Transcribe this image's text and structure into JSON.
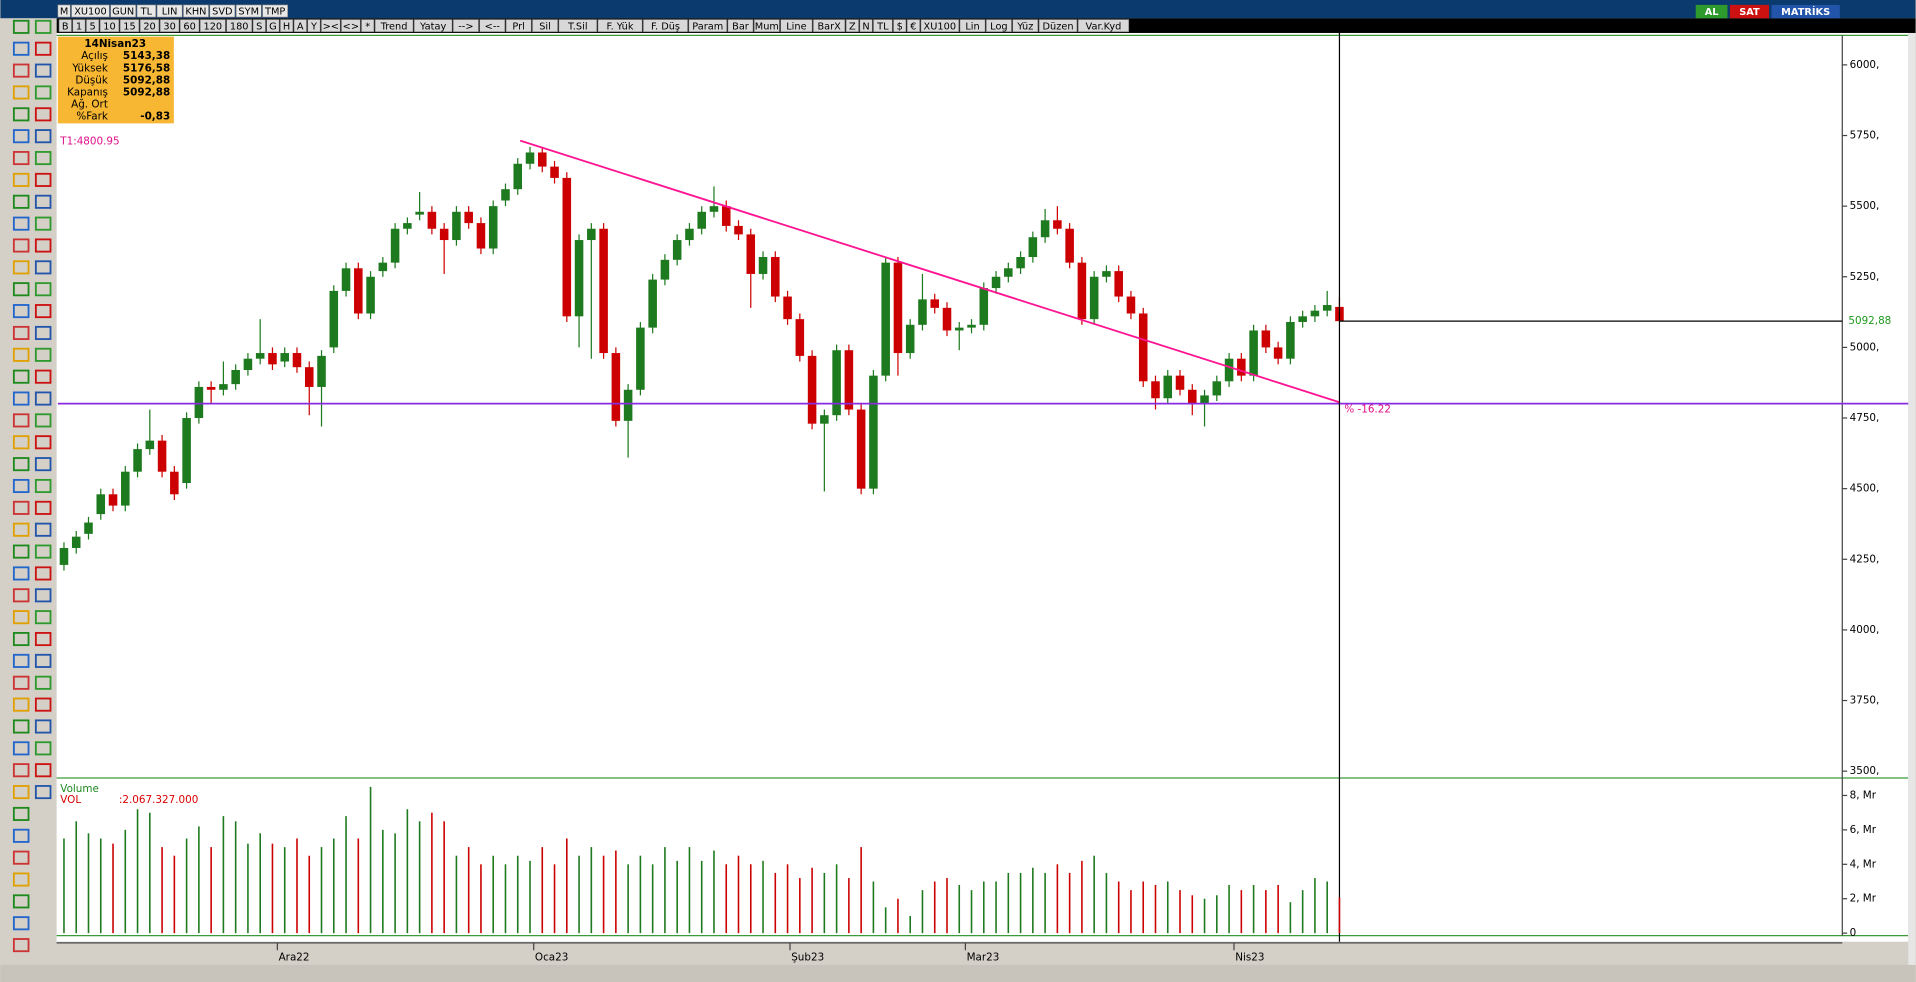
{
  "toolbar": {
    "row1": [
      "M",
      "XU100",
      "GUN",
      "TL",
      "LIN",
      "KHN",
      "SVD",
      "SYM",
      "TMP"
    ],
    "row2": [
      "B",
      "1",
      "5",
      "10",
      "15",
      "20",
      "30",
      "60",
      "120",
      "180",
      "S",
      "G",
      "H",
      "A",
      "Y",
      "><",
      "<>",
      "*",
      "Trend",
      "Yatay",
      "-->",
      "<--",
      "Prl",
      "Sil",
      "T.Sil",
      "F. Yük",
      "F. Düş",
      "Param",
      "Bar",
      "Mum",
      "Line",
      "BarX",
      "Z",
      "N",
      "TL",
      "$",
      "€",
      "XU100",
      "Lin",
      "Log",
      "Yüz",
      "Düzen",
      "Var.Kyd"
    ],
    "right": [
      "AL",
      "SAT",
      "MATRİKS"
    ]
  },
  "info_panel": {
    "title": "14Nisan23",
    "rows": [
      {
        "label": "Açılış",
        "value": "5143,38"
      },
      {
        "label": "Yüksek",
        "value": "5176,58"
      },
      {
        "label": "Düşük",
        "value": "5092,88"
      },
      {
        "label": "Kapanış",
        "value": "5092,88"
      },
      {
        "label": "Ağ. Ort"
      },
      {
        "label": "%Fark",
        "value": "-0,83"
      }
    ]
  },
  "chart_data": [
    {
      "type": "candlestick",
      "up_color": "#1e7a1e",
      "down_color": "#cc0000",
      "xlim": [
        -0.5,
        145
      ],
      "ylim": [
        3480,
        6100
      ],
      "xticks": [
        {
          "value": 17.4,
          "label": "Ara22"
        },
        {
          "value": 38.3,
          "label": "Oca23"
        },
        {
          "value": 59.2,
          "label": "Şub23"
        },
        {
          "value": 73.5,
          "label": "Mar23"
        },
        {
          "value": 95.4,
          "label": "Nis23"
        }
      ],
      "yticks": [
        {
          "value": 6000,
          "label": "6000,"
        },
        {
          "value": 5750,
          "label": "5750,"
        },
        {
          "value": 5500,
          "label": "5500,"
        },
        {
          "value": 5250,
          "label": "5250,"
        },
        {
          "value": 5000,
          "label": "5000,"
        },
        {
          "value": 4750,
          "label": "4750,"
        },
        {
          "value": 4500,
          "label": "4500,"
        },
        {
          "value": 4250,
          "label": "4250,"
        },
        {
          "value": 4000,
          "label": "4000,"
        },
        {
          "value": 3750,
          "label": "3750,"
        },
        {
          "value": 3500,
          "label": "3500,"
        }
      ],
      "open": [
        4230,
        4290,
        4340,
        4410,
        4480,
        4440,
        4560,
        4640,
        4670,
        4560,
        4520,
        4750,
        4860,
        4850,
        4870,
        4920,
        4960,
        4980,
        4950,
        4980,
        4930,
        4860,
        5000,
        5200,
        5280,
        5120,
        5270,
        5300,
        5420,
        5470,
        5480,
        5420,
        5380,
        5480,
        5440,
        5350,
        5520,
        5560,
        5650,
        5690,
        5640,
        5600,
        5110,
        5380,
        5420,
        4980,
        4740,
        4850,
        5070,
        5240,
        5310,
        5380,
        5420,
        5480,
        5500,
        5430,
        5400,
        5260,
        5320,
        5180,
        5100,
        4970,
        4730,
        4760,
        4990,
        4780,
        4500,
        4900,
        5300,
        4980,
        5080,
        5170,
        5140,
        5060,
        5070,
        5080,
        5210,
        5250,
        5280,
        5320,
        5390,
        5450,
        5420,
        5300,
        5100,
        5250,
        5270,
        5180,
        5120,
        4880,
        4820,
        4900,
        4850,
        4800,
        4830,
        4880,
        4960,
        4900,
        5060,
        5000,
        4960,
        5090,
        5110,
        5130,
        5143.38
      ],
      "high": [
        4310,
        4350,
        4400,
        4500,
        4500,
        4580,
        4660,
        4780,
        4690,
        4580,
        4770,
        4880,
        4880,
        4950,
        4940,
        4980,
        5100,
        5000,
        5000,
        5000,
        4950,
        4990,
        5220,
        5300,
        5300,
        5270,
        5320,
        5440,
        5460,
        5550,
        5500,
        5440,
        5500,
        5500,
        5460,
        5520,
        5580,
        5670,
        5710,
        5710,
        5660,
        5620,
        5400,
        5440,
        5440,
        5000,
        4870,
        5090,
        5260,
        5330,
        5400,
        5440,
        5500,
        5570,
        5520,
        5450,
        5420,
        5340,
        5340,
        5200,
        5120,
        4990,
        4780,
        5010,
        5010,
        4800,
        4920,
        5320,
        5320,
        5100,
        5260,
        5190,
        5160,
        5090,
        5100,
        5230,
        5270,
        5300,
        5340,
        5410,
        5490,
        5500,
        5440,
        5320,
        5270,
        5290,
        5290,
        5200,
        5140,
        4900,
        4920,
        4920,
        4870,
        4850,
        4900,
        4980,
        4980,
        5080,
        5080,
        5020,
        5110,
        5130,
        5150,
        5200,
        5176.58
      ],
      "low": [
        4210,
        4270,
        4320,
        4390,
        4420,
        4420,
        4540,
        4620,
        4540,
        4460,
        4500,
        4730,
        4800,
        4830,
        4850,
        4900,
        4940,
        4920,
        4930,
        4910,
        4760,
        4720,
        4980,
        5180,
        5100,
        5100,
        5250,
        5280,
        5400,
        5450,
        5400,
        5260,
        5360,
        5420,
        5330,
        5330,
        5500,
        5540,
        5630,
        5620,
        5580,
        5090,
        5000,
        4960,
        4960,
        4720,
        4610,
        4830,
        5050,
        5220,
        5290,
        5360,
        5400,
        5460,
        5410,
        5380,
        5140,
        5240,
        5160,
        5080,
        4950,
        4710,
        4490,
        4740,
        4760,
        4480,
        4480,
        4880,
        4900,
        4960,
        5060,
        5120,
        5040,
        4990,
        5050,
        5060,
        5190,
        5230,
        5260,
        5300,
        5370,
        5400,
        5280,
        5080,
        5080,
        5230,
        5160,
        5100,
        4860,
        4780,
        4800,
        4830,
        4760,
        4720,
        4810,
        4860,
        4880,
        4880,
        4980,
        4940,
        4940,
        5070,
        5090,
        5110,
        5092.88
      ],
      "close": [
        4290,
        4330,
        4380,
        4480,
        4440,
        4560,
        4640,
        4670,
        4560,
        4480,
        4750,
        4860,
        4850,
        4870,
        4920,
        4960,
        4980,
        4940,
        4980,
        4930,
        4860,
        4970,
        5200,
        5280,
        5120,
        5250,
        5300,
        5420,
        5440,
        5480,
        5420,
        5380,
        5480,
        5440,
        5350,
        5500,
        5560,
        5650,
        5690,
        5640,
        5600,
        5110,
        5380,
        5420,
        4980,
        4740,
        4850,
        5070,
        5240,
        5310,
        5380,
        5420,
        5480,
        5500,
        5430,
        5400,
        5260,
        5320,
        5180,
        5100,
        4970,
        4730,
        4760,
        4990,
        4780,
        4500,
        4900,
        5300,
        4980,
        5080,
        5170,
        5140,
        5060,
        5070,
        5080,
        5210,
        5250,
        5280,
        5320,
        5390,
        5450,
        5420,
        5300,
        5100,
        5250,
        5270,
        5180,
        5120,
        4880,
        4820,
        4900,
        4850,
        4800,
        4830,
        4880,
        4960,
        4900,
        5060,
        5000,
        4960,
        5090,
        5110,
        5130,
        5150,
        5092.88
      ],
      "last_label": "5092,88",
      "hline": {
        "value": 4800.95,
        "label": "T1:4800.95",
        "color": "#8a2be2"
      },
      "trendline": {
        "start": [
          37.2,
          5732
        ],
        "end": [
          104,
          4806
        ],
        "label": "% -16.22",
        "color": "#ff1493"
      }
    },
    {
      "type": "bar",
      "title": "Volume",
      "xlim": [
        -0.5,
        145
      ],
      "ylim": [
        0,
        8.8
      ],
      "yticks": [
        {
          "value": 8,
          "label": "8, Mr"
        },
        {
          "value": 6,
          "label": "6, Mr"
        },
        {
          "value": 4,
          "label": "4, Mr"
        },
        {
          "value": 2,
          "label": "2, Mr"
        },
        0
      ],
      "series": [
        {
          "name": "VOL",
          "last_label": ":2.067.327.000",
          "values": [
            5.5,
            6.5,
            5.8,
            5.5,
            5.2,
            6.0,
            7.2,
            7.0,
            5.0,
            4.5,
            5.5,
            6.2,
            5.0,
            6.8,
            6.5,
            5.2,
            5.8,
            5.2,
            5.0,
            5.5,
            4.5,
            5.0,
            5.5,
            6.8,
            5.5,
            8.5,
            6.0,
            5.8,
            7.2,
            6.5,
            7.0,
            6.5,
            4.5,
            5.0,
            4.0,
            4.5,
            4.0,
            4.5,
            4.2,
            5.0,
            4.0,
            5.5,
            4.5,
            5.0,
            4.5,
            4.8,
            4.0,
            4.5,
            4.0,
            5.0,
            4.2,
            5.0,
            4.2,
            4.8,
            4.0,
            4.5,
            4.0,
            4.2,
            3.5,
            4.0,
            3.2,
            3.8,
            3.5,
            4.0,
            3.2,
            5.0,
            3.0,
            1.5,
            2.0,
            1.0,
            2.5,
            3.0,
            3.2,
            2.8,
            2.5,
            3.0,
            3.0,
            3.5,
            3.5,
            3.8,
            3.5,
            4.0,
            3.5,
            4.2,
            4.5,
            3.5,
            3.0,
            2.5,
            3.0,
            2.8,
            3.0,
            2.5,
            2.2,
            2.0,
            2.2,
            2.8,
            2.5,
            2.8,
            2.5,
            2.8,
            1.8,
            2.5,
            3.2,
            3.0,
            2.067327
          ]
        }
      ]
    }
  ]
}
